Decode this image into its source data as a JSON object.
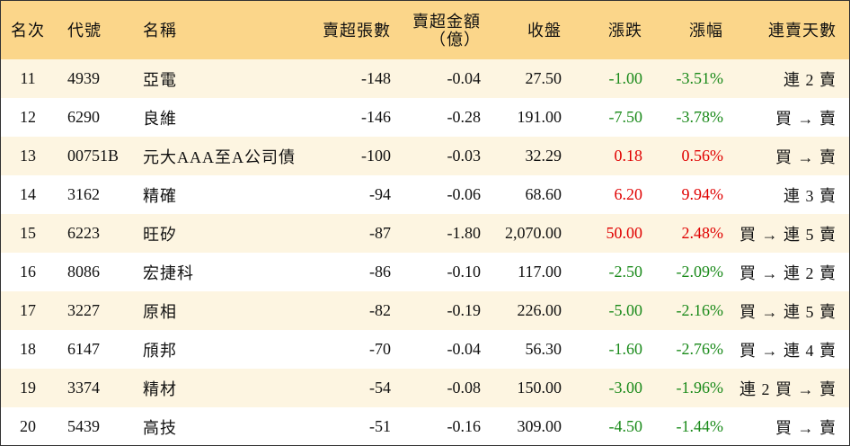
{
  "table": {
    "header": [
      "名次",
      "代號",
      "名稱",
      "賣超張數",
      "賣超金額\n（億）",
      "收盤",
      "漲跌",
      "漲幅",
      "連賣天數"
    ],
    "rows": [
      [
        "11",
        "4939",
        "亞電",
        "-148",
        "-0.04",
        "27.50",
        "-1.00",
        "-3.51%",
        "連 2 賣"
      ],
      [
        "12",
        "6290",
        "良維",
        "-146",
        "-0.28",
        "191.00",
        "-7.50",
        "-3.78%",
        "買 → 賣"
      ],
      [
        "13",
        "00751B",
        "元大AAA至A公司債",
        "-100",
        "-0.03",
        "32.29",
        "0.18",
        "0.56%",
        "買 → 賣"
      ],
      [
        "14",
        "3162",
        "精確",
        "-94",
        "-0.06",
        "68.60",
        "6.20",
        "9.94%",
        "連 3 賣"
      ],
      [
        "15",
        "6223",
        "旺矽",
        "-87",
        "-1.80",
        "2,070.00",
        "50.00",
        "2.48%",
        "買 → 連 5 賣"
      ],
      [
        "16",
        "8086",
        "宏捷科",
        "-86",
        "-0.10",
        "117.00",
        "-2.50",
        "-2.09%",
        "買 → 連 2 賣"
      ],
      [
        "17",
        "3227",
        "原相",
        "-82",
        "-0.19",
        "226.00",
        "-5.00",
        "-2.16%",
        "買 → 連 5 賣"
      ],
      [
        "18",
        "6147",
        "頎邦",
        "-70",
        "-0.04",
        "56.30",
        "-1.60",
        "-2.76%",
        "買 → 連 4 賣"
      ],
      [
        "19",
        "3374",
        "精材",
        "-54",
        "-0.08",
        "150.00",
        "-3.00",
        "-1.96%",
        "連 2 買 → 賣"
      ],
      [
        "20",
        "5439",
        "高技",
        "-51",
        "-0.16",
        "309.00",
        "-4.50",
        "-1.44%",
        "買 → 賣"
      ]
    ]
  }
}
